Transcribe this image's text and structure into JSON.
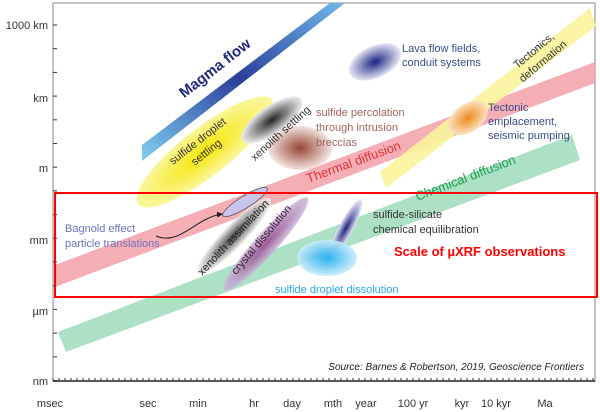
{
  "y_axis": {
    "ticks": [
      "1000 km",
      "km",
      "m",
      "mm",
      "µm",
      "nm"
    ]
  },
  "x_axis": {
    "ticks": [
      "msec",
      "sec",
      "min",
      "hr",
      "day",
      "mth",
      "year",
      "100 yr",
      "kyr",
      "10 kyr",
      "Ma"
    ]
  },
  "processes": {
    "magma_flow": "Magma flow",
    "lava_1": "Lava flow fields,",
    "lava_2": "conduit systems",
    "tectonics_1": "Tectonics,",
    "tectonics_2": "deformation",
    "sulfide_settling_1": "sulfide droplet",
    "sulfide_settling_2": "settling",
    "xenolith_settling": "xenolith settling",
    "percolation_1": "sulfide percolation",
    "percolation_2": "through intrusion",
    "percolation_3": "breccias",
    "thermal": "Thermal diffusion",
    "tectonic_emp_1": "Tectonic",
    "tectonic_emp_2": "emplacement,",
    "tectonic_emp_3": "seismic pumping",
    "chemical": "Chemical diffusion",
    "bagnold_1": "Bagnold effect",
    "bagnold_2": "particle translations",
    "xenolith_assim": "xenolith assimilation",
    "crystal_diss": "crystal dissolution",
    "equil_1": "sulfide-silicate",
    "equil_2": "chemical equilibration",
    "droplet_diss": "sulfide droplet dissolution"
  },
  "highlight_label": "Scale of µXRF observations",
  "source": "Source: Barnes & Robertson, 2019, Geoscience Frontiers",
  "colors": {
    "highlight": "#ff0000",
    "thermal": "#f4a0a8",
    "chemical": "#9fdcbc",
    "tectonics": "#fbf39a",
    "magma": "#5a9fd8"
  }
}
